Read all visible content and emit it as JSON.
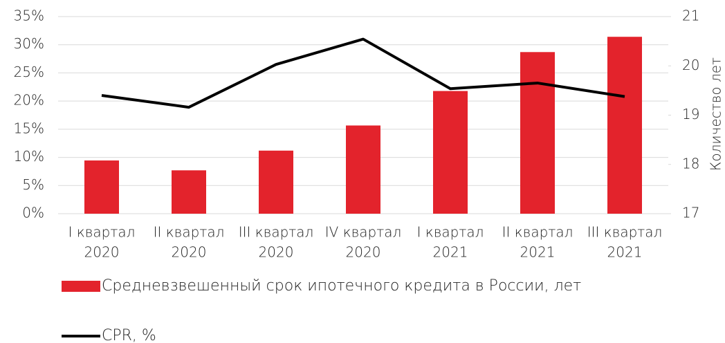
{
  "chart_data": {
    "type": "bar_line",
    "categories": [
      [
        "I квартал",
        "2020"
      ],
      [
        "II квартал",
        "2020"
      ],
      [
        "III квартал",
        "2020"
      ],
      [
        "IV квартал",
        "2020"
      ],
      [
        "I квартал",
        "2021"
      ],
      [
        "II квартал",
        "2021"
      ],
      [
        "III квартал",
        "2021"
      ]
    ],
    "series": [
      {
        "name": "Средневзвешенный срок ипотечного кредита в России, лет",
        "type": "bar",
        "axis": "y2",
        "color": "#e3232c",
        "values": [
          18.08,
          17.88,
          18.28,
          18.79,
          19.49,
          20.28,
          20.59
        ]
      },
      {
        "name": "CPR, %",
        "type": "line",
        "axis": "y",
        "color": "#000000",
        "values": [
          21.0,
          18.9,
          26.5,
          31.0,
          22.2,
          23.2,
          20.8
        ]
      }
    ],
    "ylim": [
      0,
      35
    ],
    "yticks": [
      {
        "value": 0,
        "label": "0%"
      },
      {
        "value": 5,
        "label": "5%"
      },
      {
        "value": 10,
        "label": "10%"
      },
      {
        "value": 15,
        "label": "15%"
      },
      {
        "value": 20,
        "label": "20%"
      },
      {
        "value": 25,
        "label": "25%"
      },
      {
        "value": 30,
        "label": "30%"
      },
      {
        "value": 35,
        "label": "35%"
      }
    ],
    "y2lim": [
      17,
      21
    ],
    "y2ticks": [
      17,
      18,
      19,
      20,
      21
    ],
    "y2label": "Количество лет",
    "grid": true
  }
}
